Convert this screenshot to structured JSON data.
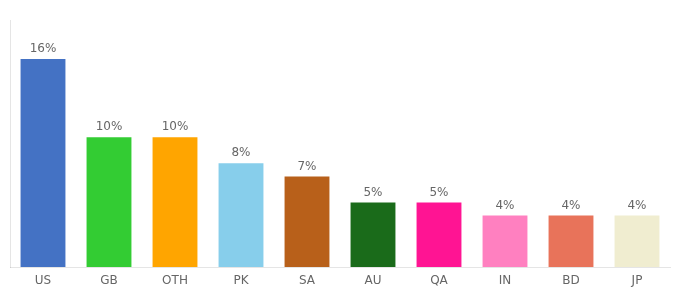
{
  "chart_data": {
    "type": "bar",
    "categories": [
      "US",
      "GB",
      "OTH",
      "PK",
      "SA",
      "AU",
      "QA",
      "IN",
      "BD",
      "JP"
    ],
    "values": [
      16,
      10,
      10,
      8,
      7,
      5,
      5,
      4,
      4,
      4
    ],
    "value_labels": [
      "16%",
      "10%",
      "10%",
      "8%",
      "7%",
      "5%",
      "5%",
      "4%",
      "4%",
      "4%"
    ],
    "colors": [
      "#4472C4",
      "#33CC33",
      "#FFA500",
      "#87CEEB",
      "#B8601A",
      "#1A6B1A",
      "#FF1493",
      "#FF80C0",
      "#E8735A",
      "#F0EDD0"
    ],
    "data_labels": true,
    "ylim": [
      0,
      19
    ],
    "tick_labels": "x",
    "grid": false
  }
}
